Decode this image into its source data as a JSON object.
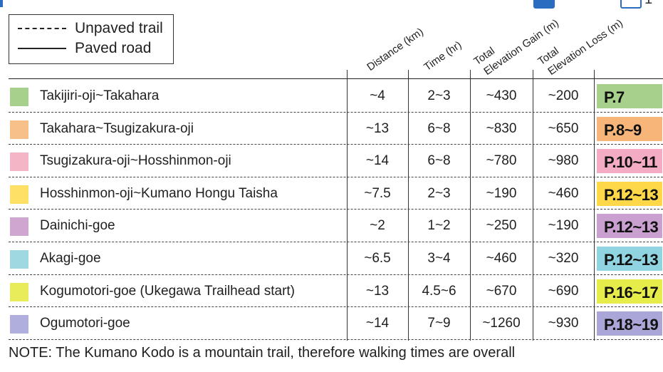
{
  "legend": {
    "unpaved": "Unpaved trail",
    "paved": "Paved road"
  },
  "columns": {
    "distance": "Distance (km)",
    "time": "Time (hr)",
    "gain_line1": "Total",
    "gain_line2": "Elevation Gain (m)",
    "loss_line1": "Total",
    "loss_line2": "Elevation Loss (m)"
  },
  "corner": {
    "page_number": "1"
  },
  "rows": [
    {
      "name": "Takijiri-oji~Takahara",
      "distance": "~4",
      "time": "2~3",
      "gain": "~430",
      "loss": "~200",
      "page": "P.7",
      "color": "#a8d08d",
      "badge_color": "#a8d08d"
    },
    {
      "name": "Takahara~Tsugizakura-oji",
      "distance": "~13",
      "time": "6~8",
      "gain": "~830",
      "loss": "~650",
      "page": "P.8~9",
      "color": "#f7c08a",
      "badge_color": "#f7b57a"
    },
    {
      "name": "Tsugizakura-oji~Hosshinmon-oji",
      "distance": "~14",
      "time": "6~8",
      "gain": "~780",
      "loss": "~980",
      "page": "P.10~11",
      "color": "#f4b6c6",
      "badge_color": "#f4acc4"
    },
    {
      "name": "Hosshinmon-oji~Kumano Hongu Taisha",
      "distance": "~7.5",
      "time": "2~3",
      "gain": "~190",
      "loss": "~460",
      "page": "P.12~13",
      "color": "#ffe066",
      "badge_color": "#ffd84a"
    },
    {
      "name": "Dainichi-goe",
      "distance": "~2",
      "time": "1~2",
      "gain": "~250",
      "loss": "~190",
      "page": "P.12~13",
      "color": "#cfa6d0",
      "badge_color": "#c9a0d0"
    },
    {
      "name": "Akagi-goe",
      "distance": "~6.5",
      "time": "3~4",
      "gain": "~460",
      "loss": "~320",
      "page": "P.12~13",
      "color": "#9fd8e0",
      "badge_color": "#8fd4e0"
    },
    {
      "name": "Kogumotori-goe (Ukegawa Trailhead start)",
      "distance": "~13",
      "time": "4.5~6",
      "gain": "~670",
      "loss": "~690",
      "page": "P.16~17",
      "color": "#e8ec5a",
      "badge_color": "#e6ec4a"
    },
    {
      "name": "Ogumotori-goe",
      "distance": "~14",
      "time": "7~9",
      "gain": "~1260",
      "loss": "~930",
      "page": "P.18~19",
      "color": "#b0aedc",
      "badge_color": "#aaa6d8"
    }
  ],
  "note": "NOTE: The Kumano Kodo is a mountain trail, therefore walking times are overall"
}
